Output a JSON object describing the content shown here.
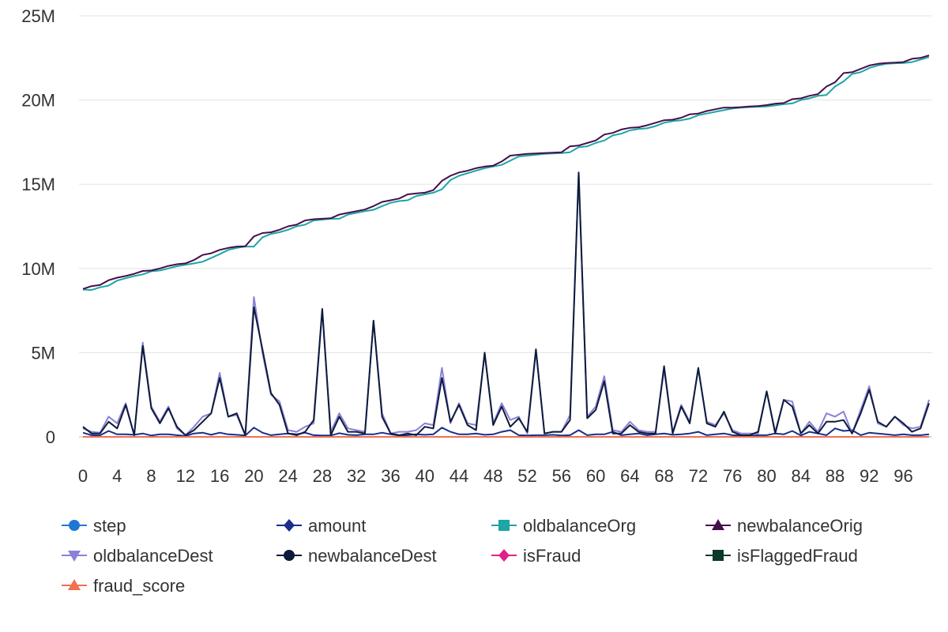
{
  "chart_data": {
    "type": "line",
    "x": [
      0,
      1,
      2,
      3,
      4,
      5,
      6,
      7,
      8,
      9,
      10,
      11,
      12,
      13,
      14,
      15,
      16,
      17,
      18,
      19,
      20,
      21,
      22,
      23,
      24,
      25,
      26,
      27,
      28,
      29,
      30,
      31,
      32,
      33,
      34,
      35,
      36,
      37,
      38,
      39,
      40,
      41,
      42,
      43,
      44,
      45,
      46,
      47,
      48,
      49,
      50,
      51,
      52,
      53,
      54,
      55,
      56,
      57,
      58,
      59,
      60,
      61,
      62,
      63,
      64,
      65,
      66,
      67,
      68,
      69,
      70,
      71,
      72,
      73,
      74,
      75,
      76,
      77,
      78,
      79,
      80,
      81,
      82,
      83,
      84,
      85,
      86,
      87,
      88,
      89,
      90,
      91,
      92,
      93,
      94,
      95,
      96,
      97,
      98,
      99
    ],
    "xticks": [
      0,
      4,
      8,
      12,
      16,
      20,
      24,
      28,
      32,
      36,
      40,
      44,
      48,
      52,
      56,
      60,
      64,
      68,
      72,
      76,
      80,
      84,
      88,
      92,
      96
    ],
    "ylim": [
      0,
      25000000
    ],
    "yticks": [
      0,
      5000000,
      10000000,
      15000000,
      20000000,
      25000000
    ],
    "ytick_labels": [
      "0",
      "5M",
      "10M",
      "15M",
      "20M",
      "25M"
    ],
    "grid": true,
    "legend_position": "bottom",
    "series": [
      {
        "name": "step",
        "color": "#1f77d4",
        "marker": "circle",
        "values": [
          1,
          1,
          1,
          1,
          1,
          1,
          1,
          1,
          1,
          1,
          1,
          1,
          1,
          1,
          1,
          1,
          1,
          1,
          1,
          1,
          1,
          1,
          1,
          1,
          1,
          1,
          1,
          1,
          1,
          1,
          1,
          1,
          1,
          1,
          1,
          1,
          1,
          1,
          1,
          1,
          1,
          1,
          1,
          1,
          1,
          1,
          1,
          1,
          1,
          1,
          1,
          1,
          1,
          1,
          1,
          1,
          1,
          1,
          1,
          1,
          1,
          1,
          1,
          1,
          1,
          1,
          1,
          1,
          1,
          1,
          1,
          1,
          1,
          1,
          1,
          1,
          1,
          1,
          1,
          1,
          1,
          1,
          1,
          1,
          1,
          1,
          1,
          1,
          1,
          1,
          1,
          1,
          1,
          1,
          1,
          1,
          1,
          1,
          1,
          1
        ]
      },
      {
        "name": "amount",
        "color": "#1a2e8c",
        "marker": "diamond",
        "values": [
          250000,
          100000,
          90000,
          350000,
          150000,
          150000,
          120000,
          200000,
          80000,
          150000,
          150000,
          100000,
          50000,
          200000,
          250000,
          120000,
          250000,
          150000,
          120000,
          80000,
          550000,
          250000,
          100000,
          150000,
          200000,
          150000,
          250000,
          100000,
          80000,
          80000,
          220000,
          120000,
          100000,
          150000,
          150000,
          250000,
          150000,
          80000,
          100000,
          150000,
          120000,
          150000,
          550000,
          300000,
          150000,
          150000,
          200000,
          120000,
          150000,
          300000,
          400000,
          100000,
          80000,
          100000,
          100000,
          120000,
          80000,
          100000,
          400000,
          100000,
          150000,
          150000,
          300000,
          100000,
          150000,
          200000,
          100000,
          150000,
          200000,
          120000,
          150000,
          200000,
          300000,
          100000,
          150000,
          200000,
          100000,
          80000,
          50000,
          100000,
          100000,
          200000,
          150000,
          350000,
          80000,
          300000,
          200000,
          100000,
          500000,
          350000,
          400000,
          100000,
          250000,
          200000,
          150000,
          100000,
          150000,
          100000,
          100000,
          150000
        ]
      },
      {
        "name": "oldbalanceOrg",
        "color": "#1ea5a5",
        "marker": "square",
        "values": [
          8750000,
          8720000,
          8880000,
          8980000,
          9280000,
          9420000,
          9550000,
          9650000,
          9830000,
          9880000,
          10000000,
          10130000,
          10220000,
          10300000,
          10400000,
          10620000,
          10850000,
          11100000,
          11220000,
          11300000,
          11300000,
          11850000,
          12050000,
          12150000,
          12300000,
          12500000,
          12600000,
          12850000,
          12900000,
          12950000,
          12950000,
          13200000,
          13300000,
          13400000,
          13480000,
          13700000,
          13900000,
          14000000,
          14050000,
          14300000,
          14400000,
          14500000,
          14700000,
          15250000,
          15500000,
          15650000,
          15800000,
          15950000,
          16050000,
          16150000,
          16400000,
          16650000,
          16700000,
          16750000,
          16800000,
          16830000,
          16850000,
          16900000,
          17200000,
          17250000,
          17450000,
          17600000,
          17900000,
          18000000,
          18200000,
          18280000,
          18320000,
          18450000,
          18650000,
          18750000,
          18800000,
          18900000,
          19100000,
          19200000,
          19300000,
          19400000,
          19500000,
          19550000,
          19580000,
          19600000,
          19620000,
          19680000,
          19750000,
          19800000,
          20000000,
          20100000,
          20250000,
          20300000,
          20800000,
          21100000,
          21550000,
          21650000,
          21900000,
          22050000,
          22150000,
          22180000,
          22200000,
          22250000,
          22400000,
          22550000
        ]
      },
      {
        "name": "newbalanceOrig",
        "color": "#44104a",
        "marker": "triangle",
        "values": [
          8780000,
          8950000,
          9020000,
          9300000,
          9450000,
          9550000,
          9680000,
          9850000,
          9880000,
          10000000,
          10150000,
          10250000,
          10300000,
          10500000,
          10800000,
          10900000,
          11100000,
          11220000,
          11300000,
          11320000,
          11900000,
          12100000,
          12150000,
          12300000,
          12500000,
          12600000,
          12850000,
          12920000,
          12950000,
          12980000,
          13200000,
          13300000,
          13400000,
          13500000,
          13700000,
          13950000,
          14050000,
          14150000,
          14400000,
          14450000,
          14500000,
          14650000,
          15200000,
          15500000,
          15700000,
          15800000,
          15950000,
          16050000,
          16100000,
          16350000,
          16700000,
          16750000,
          16800000,
          16830000,
          16850000,
          16870000,
          16900000,
          17250000,
          17300000,
          17450000,
          17600000,
          17950000,
          18050000,
          18250000,
          18350000,
          18380000,
          18500000,
          18650000,
          18800000,
          18830000,
          18950000,
          19150000,
          19200000,
          19350000,
          19450000,
          19550000,
          19550000,
          19580000,
          19620000,
          19640000,
          19700000,
          19780000,
          19820000,
          20050000,
          20100000,
          20250000,
          20350000,
          20800000,
          21050000,
          21600000,
          21650000,
          21850000,
          22050000,
          22150000,
          22200000,
          22220000,
          22250000,
          22450000,
          22500000,
          22650000
        ]
      },
      {
        "name": "oldbalanceDest",
        "color": "#8a80d8",
        "marker": "triangle-down",
        "values": [
          500000,
          300000,
          250000,
          1200000,
          800000,
          2000000,
          100000,
          5600000,
          1800000,
          900000,
          1800000,
          500000,
          100000,
          600000,
          1200000,
          1400000,
          3800000,
          1200000,
          1300000,
          100000,
          8300000,
          5000000,
          2500000,
          2100000,
          400000,
          300000,
          600000,
          800000,
          7500000,
          300000,
          1400000,
          500000,
          400000,
          300000,
          6900000,
          1400000,
          200000,
          300000,
          300000,
          400000,
          800000,
          700000,
          4100000,
          800000,
          2000000,
          800000,
          700000,
          4900000,
          800000,
          2000000,
          1000000,
          1200000,
          200000,
          5100000,
          200000,
          300000,
          300000,
          1300000,
          15600000,
          1200000,
          1800000,
          3600000,
          400000,
          300000,
          900000,
          400000,
          300000,
          300000,
          4000000,
          300000,
          1900000,
          900000,
          4000000,
          900000,
          700000,
          1400000,
          400000,
          200000,
          200000,
          200000,
          2700000,
          300000,
          2200000,
          2100000,
          200000,
          900000,
          300000,
          1400000,
          1200000,
          1500000,
          200000,
          1600000,
          3000000,
          800000,
          600000,
          1200000,
          700000,
          500000,
          600000,
          2200000
        ]
      },
      {
        "name": "newbalanceDest",
        "color": "#0d1b3a",
        "marker": "circle",
        "values": [
          600000,
          200000,
          200000,
          900000,
          500000,
          1900000,
          100000,
          5400000,
          1700000,
          800000,
          1700000,
          600000,
          100000,
          400000,
          900000,
          1400000,
          3500000,
          1200000,
          1400000,
          100000,
          7700000,
          5200000,
          2600000,
          1900000,
          200000,
          100000,
          300000,
          1000000,
          7600000,
          100000,
          1200000,
          300000,
          300000,
          200000,
          6900000,
          1200000,
          200000,
          100000,
          200000,
          100000,
          600000,
          500000,
          3500000,
          900000,
          1900000,
          700000,
          400000,
          5000000,
          700000,
          1800000,
          600000,
          1100000,
          300000,
          5200000,
          200000,
          300000,
          300000,
          1000000,
          15700000,
          1100000,
          1600000,
          3300000,
          200000,
          200000,
          700000,
          300000,
          200000,
          200000,
          4200000,
          200000,
          1800000,
          800000,
          4100000,
          800000,
          600000,
          1500000,
          300000,
          100000,
          100000,
          300000,
          2700000,
          200000,
          2200000,
          1800000,
          200000,
          700000,
          200000,
          900000,
          900000,
          1000000,
          200000,
          1400000,
          2800000,
          900000,
          600000,
          1200000,
          800000,
          300000,
          500000,
          2000000
        ]
      },
      {
        "name": "isFraud",
        "color": "#e0218a",
        "marker": "diamond",
        "values": [
          0,
          0,
          0,
          0,
          0,
          0,
          0,
          0,
          0,
          0,
          0,
          0,
          0,
          0,
          0,
          0,
          0,
          0,
          0,
          0,
          0,
          0,
          0,
          0,
          0,
          0,
          0,
          0,
          0,
          0,
          0,
          0,
          0,
          0,
          0,
          0,
          0,
          0,
          0,
          0,
          0,
          0,
          0,
          0,
          0,
          0,
          0,
          0,
          0,
          0,
          0,
          0,
          0,
          0,
          0,
          0,
          0,
          0,
          0,
          0,
          0,
          0,
          0,
          0,
          0,
          0,
          0,
          0,
          0,
          0,
          0,
          0,
          0,
          0,
          0,
          0,
          0,
          0,
          0,
          0,
          0,
          0,
          0,
          0,
          0,
          0,
          0,
          0,
          0,
          0,
          0,
          0,
          0,
          0,
          0,
          0,
          0,
          0,
          0,
          0
        ]
      },
      {
        "name": "isFlaggedFraud",
        "color": "#0b3a2a",
        "marker": "square",
        "values": [
          0,
          0,
          0,
          0,
          0,
          0,
          0,
          0,
          0,
          0,
          0,
          0,
          0,
          0,
          0,
          0,
          0,
          0,
          0,
          0,
          0,
          0,
          0,
          0,
          0,
          0,
          0,
          0,
          0,
          0,
          0,
          0,
          0,
          0,
          0,
          0,
          0,
          0,
          0,
          0,
          0,
          0,
          0,
          0,
          0,
          0,
          0,
          0,
          0,
          0,
          0,
          0,
          0,
          0,
          0,
          0,
          0,
          0,
          0,
          0,
          0,
          0,
          0,
          0,
          0,
          0,
          0,
          0,
          0,
          0,
          0,
          0,
          0,
          0,
          0,
          0,
          0,
          0,
          0,
          0,
          0,
          0,
          0,
          0,
          0,
          0,
          0,
          0,
          0,
          0,
          0,
          0,
          0,
          0,
          0,
          0,
          0,
          0,
          0,
          0
        ]
      },
      {
        "name": "fraud_score",
        "color": "#f0704f",
        "marker": "triangle",
        "values": [
          0,
          0,
          0,
          0,
          0,
          0,
          0,
          0,
          0,
          0,
          0,
          0,
          0,
          0,
          0,
          0,
          0,
          0,
          0,
          0,
          0,
          0,
          0,
          0,
          0,
          0,
          0,
          0,
          0,
          0,
          0,
          0,
          0,
          0,
          0,
          0,
          0,
          0,
          0,
          0,
          0,
          0,
          0,
          0,
          0,
          0,
          0,
          0,
          0,
          0,
          0,
          0,
          0,
          0,
          0,
          0,
          0,
          0,
          0,
          0,
          0,
          0,
          0,
          0,
          0,
          0,
          0,
          0,
          0,
          0,
          0,
          0,
          0,
          0,
          0,
          0,
          0,
          0,
          0,
          0,
          0,
          0,
          0,
          0,
          0,
          0,
          0,
          0,
          0,
          0,
          0,
          0,
          0,
          0,
          0,
          0,
          0,
          0,
          0,
          0
        ]
      }
    ]
  }
}
